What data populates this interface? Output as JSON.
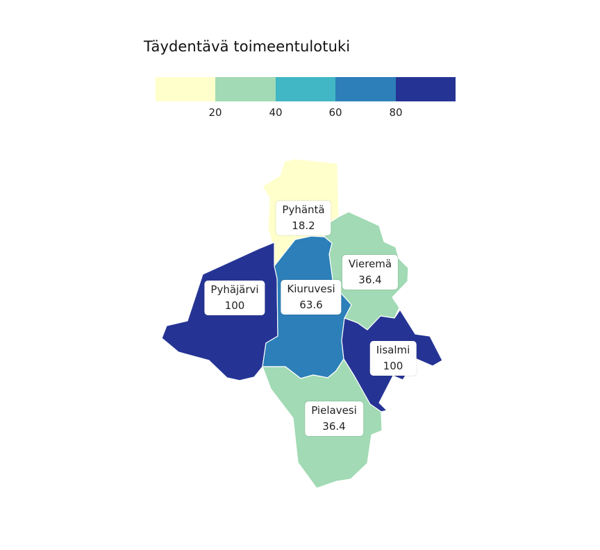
{
  "title": "Täydentävä toimeentulotuki",
  "legend": {
    "colors": [
      "#ffffcc",
      "#a1dab4",
      "#41b6c4",
      "#2c7fb8",
      "#253494"
    ],
    "ticks": [
      "20",
      "40",
      "60",
      "80"
    ]
  },
  "regions": [
    {
      "name": "Pyhäntä",
      "value": "18.2",
      "color": "#ffffcc"
    },
    {
      "name": "Vieremä",
      "value": "36.4",
      "color": "#a1dab4"
    },
    {
      "name": "Pyhäjärvi",
      "value": "100",
      "color": "#253494"
    },
    {
      "name": "Kiuruvesi",
      "value": "63.6",
      "color": "#2c7fb8"
    },
    {
      "name": "Iisalmi",
      "value": "100",
      "color": "#253494"
    },
    {
      "name": "Pielavesi",
      "value": "36.4",
      "color": "#a1dab4"
    }
  ]
}
